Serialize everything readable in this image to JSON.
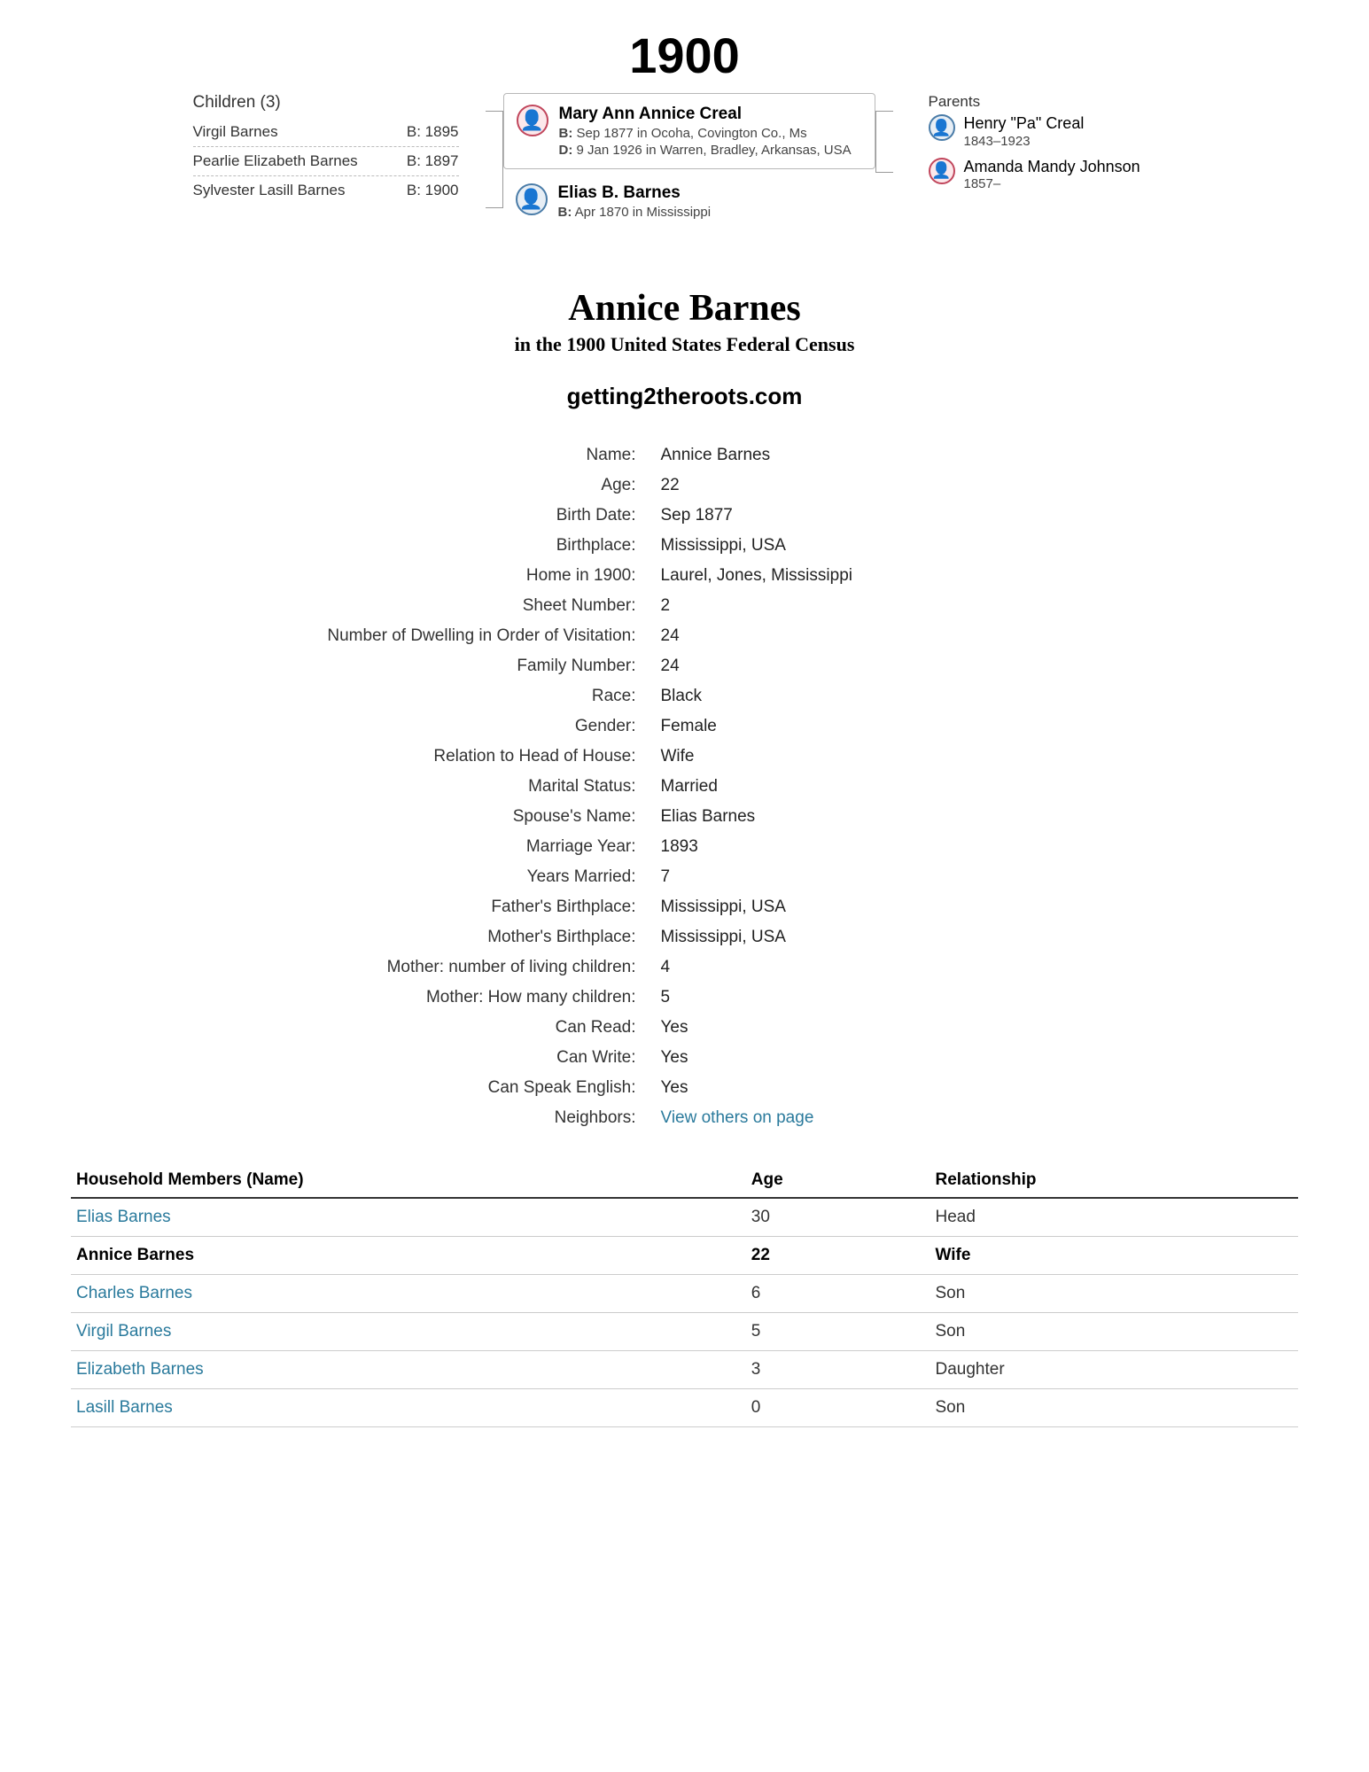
{
  "year": "1900",
  "children_header": "Children (3)",
  "children": [
    {
      "name": "Virgil Barnes",
      "birth": "B: 1895"
    },
    {
      "name": "Pearlie Elizabeth Barnes",
      "birth": "B: 1897"
    },
    {
      "name": "Sylvester Lasill Barnes",
      "birth": "B: 1900"
    }
  ],
  "primary": {
    "name": "Mary Ann Annice Creal",
    "b_label": "B:",
    "b_value": "Sep 1877 in Ocoha, Covington Co., Ms",
    "d_label": "D:",
    "d_value": "9 Jan 1926 in Warren, Bradley, Arkansas, USA"
  },
  "spouse": {
    "name": "Elias B. Barnes",
    "b_label": "B:",
    "b_value": "Apr 1870 in Mississippi"
  },
  "parents_header": "Parents",
  "parents": [
    {
      "name": "Henry \"Pa\" Creal",
      "dates": "1843–1923",
      "sex": "male"
    },
    {
      "name": "Amanda Mandy Johnson",
      "dates": "1857–",
      "sex": "female"
    }
  ],
  "record_title": "Annice Barnes",
  "record_subtitle": "in the 1900 United States Federal Census",
  "site_url": "getting2theroots.com",
  "fields": [
    {
      "label": "Name:",
      "value": "Annice Barnes"
    },
    {
      "label": "Age:",
      "value": "22"
    },
    {
      "label": "Birth Date:",
      "value": "Sep 1877"
    },
    {
      "label": "Birthplace:",
      "value": "Mississippi, USA"
    },
    {
      "label": "Home in 1900:",
      "value": "Laurel, Jones, Mississippi"
    },
    {
      "label": "Sheet Number:",
      "value": "2"
    },
    {
      "label": "Number of Dwelling in Order of Visitation:",
      "value": "24"
    },
    {
      "label": "Family Number:",
      "value": "24"
    },
    {
      "label": "Race:",
      "value": "Black"
    },
    {
      "label": "Gender:",
      "value": "Female"
    },
    {
      "label": "Relation to Head of House:",
      "value": "Wife"
    },
    {
      "label": "Marital Status:",
      "value": "Married"
    },
    {
      "label": "Spouse's Name:",
      "value": "Elias Barnes"
    },
    {
      "label": "Marriage Year:",
      "value": "1893"
    },
    {
      "label": "Years Married:",
      "value": "7"
    },
    {
      "label": "Father's Birthplace:",
      "value": "Mississippi, USA"
    },
    {
      "label": "Mother's Birthplace:",
      "value": "Mississippi, USA"
    },
    {
      "label": "Mother: number of living children:",
      "value": "4"
    },
    {
      "label": "Mother: How many children:",
      "value": "5"
    },
    {
      "label": "Can Read:",
      "value": "Yes"
    },
    {
      "label": "Can Write:",
      "value": "Yes"
    },
    {
      "label": "Can Speak English:",
      "value": "Yes"
    },
    {
      "label": "Neighbors:",
      "value": "View others on page",
      "link": true
    }
  ],
  "hh_headers": {
    "name": "Household Members (Name)",
    "age": "Age",
    "rel": "Relationship"
  },
  "household": [
    {
      "name": "Elias Barnes",
      "age": "30",
      "rel": "Head",
      "link": true
    },
    {
      "name": "Annice Barnes",
      "age": "22",
      "rel": "Wife",
      "bold": true
    },
    {
      "name": "Charles Barnes",
      "age": "6",
      "rel": "Son",
      "link": true
    },
    {
      "name": "Virgil Barnes",
      "age": "5",
      "rel": "Son",
      "link": true
    },
    {
      "name": "Elizabeth Barnes",
      "age": "3",
      "rel": "Daughter",
      "link": true
    },
    {
      "name": "Lasill Barnes",
      "age": "0",
      "rel": "Son",
      "link": true
    }
  ],
  "colors": {
    "link": "#2a7a9c",
    "border": "#b8b8b8",
    "text": "#333333"
  }
}
